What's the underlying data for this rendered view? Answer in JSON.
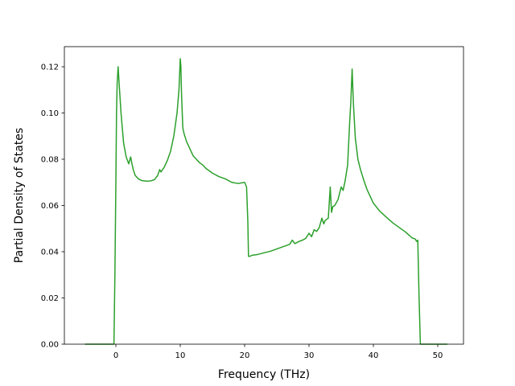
{
  "chart_data": {
    "type": "line",
    "title": "",
    "xlabel": "Frequency (THz)",
    "ylabel": "Partial Density of States",
    "xlim": [
      -8.0,
      54.0
    ],
    "ylim": [
      0.0,
      0.1287
    ],
    "xticks": [
      0,
      10,
      20,
      30,
      40,
      50
    ],
    "yticks": [
      0.0,
      0.02,
      0.04,
      0.06,
      0.08,
      0.1,
      0.12
    ],
    "ytick_labels": [
      "0.00",
      "0.02",
      "0.04",
      "0.06",
      "0.08",
      "0.10",
      "0.12"
    ],
    "grid": false,
    "legend": "none",
    "colors": {
      "line": "#2ca02c",
      "axes": "#000000",
      "background": "#ffffff"
    },
    "series": [
      {
        "x": [
          -4.8,
          -0.3,
          -0.15,
          0.0,
          0.1,
          0.2,
          0.35,
          0.5,
          0.8,
          1.2,
          1.6,
          2.0,
          2.3,
          2.5,
          2.7,
          3.0,
          3.5,
          4.0,
          4.5,
          5.0,
          5.5,
          6.0,
          6.5,
          6.8,
          7.0,
          7.5,
          8.0,
          8.5,
          9.0,
          9.5,
          9.8,
          10.0,
          10.1,
          10.2,
          10.4,
          10.6,
          11.0,
          11.5,
          12.0,
          12.5,
          13.0,
          13.5,
          14.0,
          15.0,
          16.0,
          17.0,
          18.0,
          19.0,
          20.0,
          20.3,
          20.5,
          20.6,
          20.8,
          21.2,
          22.0,
          23.0,
          24.0,
          25.0,
          26.0,
          27.0,
          27.4,
          27.8,
          28.5,
          29.0,
          29.5,
          30.0,
          30.4,
          30.8,
          31.2,
          31.6,
          32.0,
          32.3,
          32.5,
          33.0,
          33.3,
          33.5,
          33.7,
          34.0,
          34.5,
          35.0,
          35.3,
          35.6,
          36.0,
          36.3,
          36.5,
          36.7,
          36.9,
          37.2,
          37.6,
          38.0,
          38.5,
          39.0,
          40.0,
          41.0,
          42.0,
          43.0,
          44.0,
          45.0,
          46.0,
          46.5,
          46.7,
          46.9,
          47.1,
          47.3,
          51.5
        ],
        "y": [
          0.0,
          0.0,
          0.03,
          0.07,
          0.1,
          0.113,
          0.12,
          0.113,
          0.1,
          0.087,
          0.081,
          0.078,
          0.081,
          0.078,
          0.0755,
          0.073,
          0.0715,
          0.0708,
          0.0706,
          0.0705,
          0.0707,
          0.0712,
          0.073,
          0.0755,
          0.0745,
          0.0765,
          0.0795,
          0.0835,
          0.09,
          0.1,
          0.11,
          0.1235,
          0.12,
          0.108,
          0.0935,
          0.091,
          0.0875,
          0.0845,
          0.0815,
          0.08,
          0.0785,
          0.0775,
          0.076,
          0.074,
          0.0725,
          0.0715,
          0.07,
          0.0695,
          0.07,
          0.068,
          0.053,
          0.038,
          0.038,
          0.0385,
          0.0388,
          0.0395,
          0.0402,
          0.0412,
          0.0422,
          0.0432,
          0.045,
          0.0435,
          0.0445,
          0.045,
          0.0458,
          0.048,
          0.0465,
          0.0495,
          0.0488,
          0.0505,
          0.0545,
          0.052,
          0.0535,
          0.0545,
          0.068,
          0.057,
          0.0595,
          0.06,
          0.0625,
          0.068,
          0.0665,
          0.0705,
          0.0775,
          0.095,
          0.105,
          0.119,
          0.104,
          0.089,
          0.08,
          0.0755,
          0.071,
          0.067,
          0.061,
          0.0575,
          0.055,
          0.0525,
          0.0505,
          0.0485,
          0.046,
          0.0455,
          0.0445,
          0.045,
          0.02,
          0.0,
          0.0
        ]
      }
    ]
  }
}
